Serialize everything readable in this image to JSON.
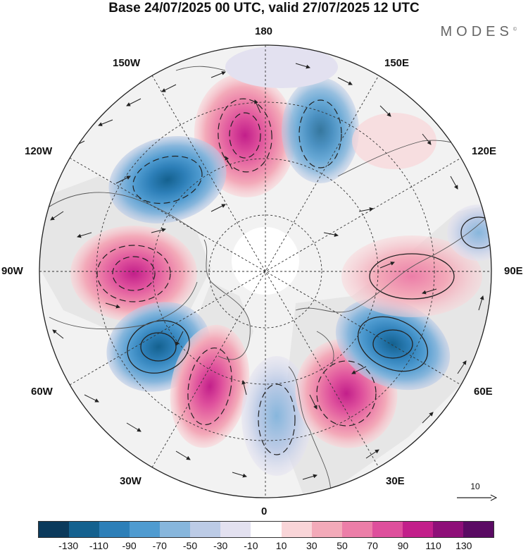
{
  "title": "Base 24/07/2025 00 UTC, valid 27/07/2025 12 UTC",
  "brand": "MODES",
  "brand_mark": "©",
  "longitude_labels": {
    "top": "180",
    "bottom": "0",
    "left": "90W",
    "right": "90E",
    "upper_left_1": "150W",
    "upper_left_2": "120W",
    "upper_right_1": "150E",
    "upper_right_2": "120E",
    "lower_left_1": "60W",
    "lower_left_2": "30W",
    "lower_right_1": "60E",
    "lower_right_2": "30E"
  },
  "reference_vector": "10",
  "colorbar": {
    "colors": [
      "#0b3a5c",
      "#14618f",
      "#2d7fb8",
      "#4f9bd0",
      "#87b6dc",
      "#bccbe6",
      "#e3e1f0",
      "#ffffff",
      "#f9d5d8",
      "#f3aab9",
      "#ec7ea8",
      "#de4f9c",
      "#c21f8a",
      "#8e0f78",
      "#5a0a63"
    ],
    "ticks": [
      "-130",
      "-110",
      "-90",
      "-70",
      "-50",
      "-30",
      "-10",
      "10",
      "30",
      "50",
      "70",
      "90",
      "110",
      "130"
    ]
  },
  "colors": {
    "positive": "#ec7ea8",
    "negative": "#4f9bd0",
    "land": "#d9d9d9",
    "coast": "#555555"
  }
}
